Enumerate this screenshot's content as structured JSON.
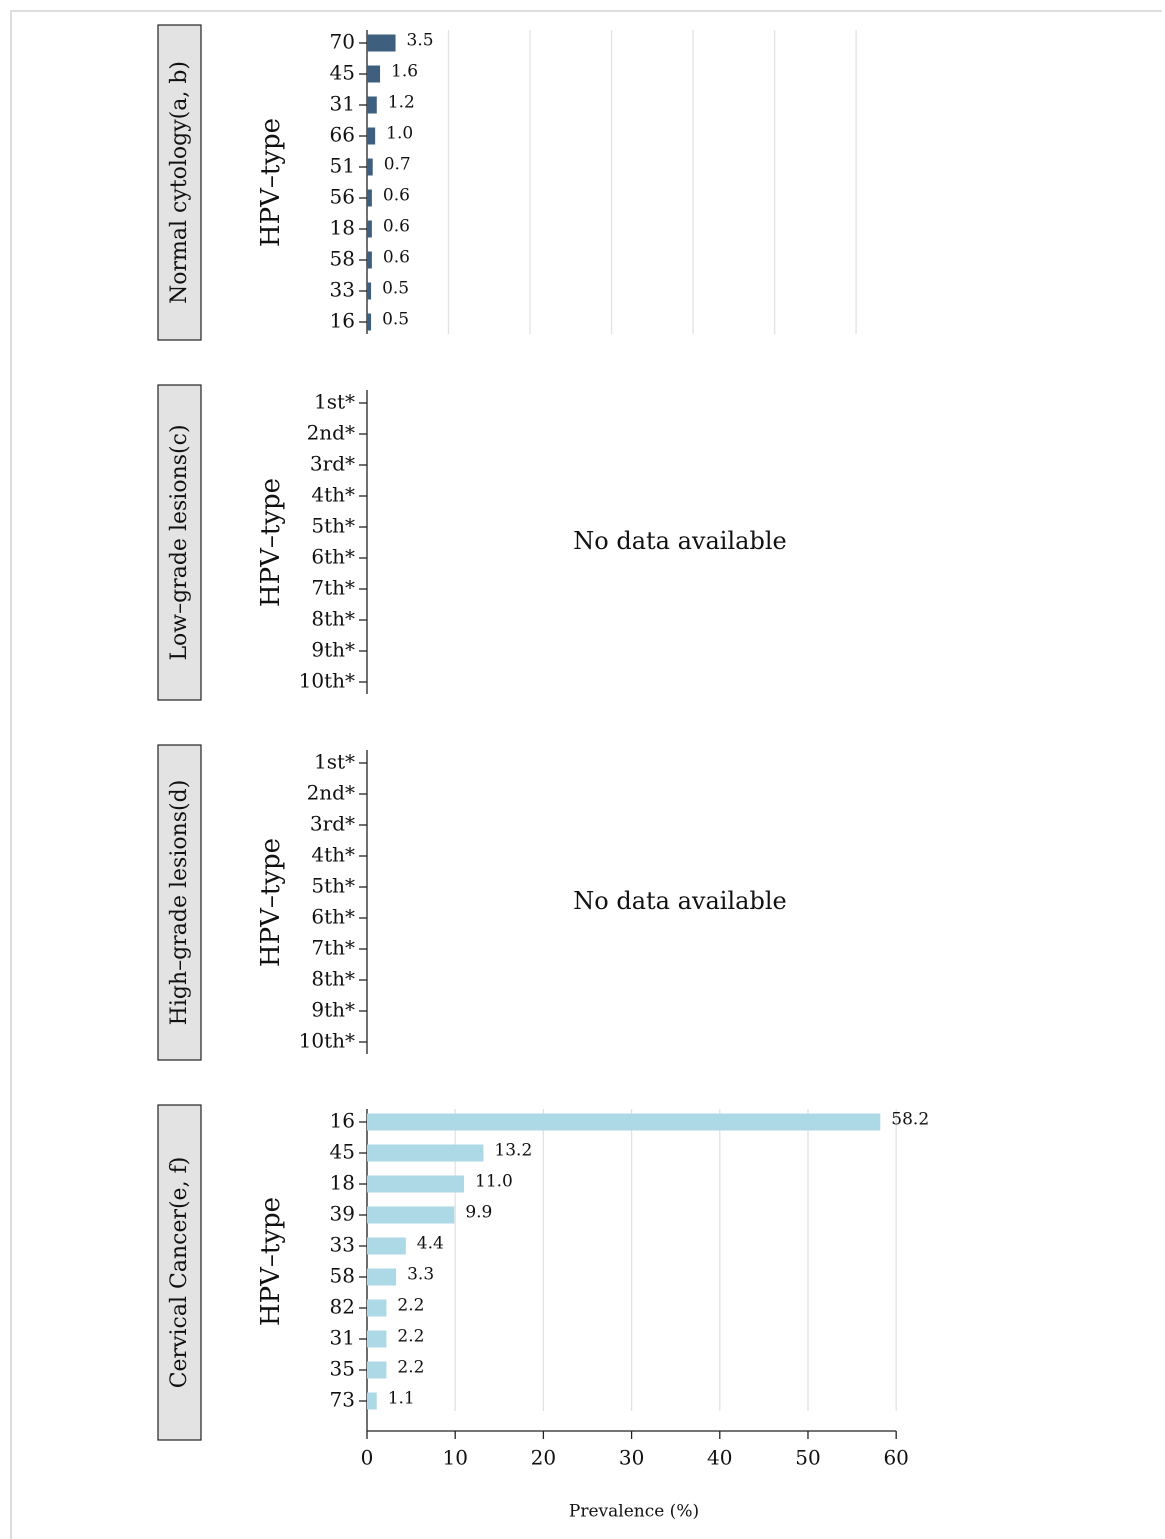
{
  "chart_data": [
    {
      "type": "bar",
      "title": "Normal cytology(a, b)",
      "y_label": "HPV–type",
      "categories": [
        "70",
        "45",
        "31",
        "66",
        "51",
        "56",
        "18",
        "58",
        "33",
        "16"
      ],
      "values": [
        3.5,
        1.6,
        1.2,
        1.0,
        0.7,
        0.6,
        0.6,
        0.6,
        0.5,
        0.5
      ],
      "value_labels": [
        "3.5",
        "1.6",
        "1.2",
        "1.0",
        "0.7",
        "0.6",
        "0.6",
        "0.6",
        "0.5",
        "0.5"
      ],
      "color": "#3e5f7e",
      "xlim": [
        0,
        66
      ],
      "xticks": [
        10,
        20,
        30,
        40,
        50,
        60
      ],
      "x_tick_labels": false,
      "grid": true
    },
    {
      "type": "bar",
      "title": "Low–grade lesions(c)",
      "y_label": "HPV–type",
      "categories": [
        "1st*",
        "2nd*",
        "3rd*",
        "4th*",
        "5th*",
        "6th*",
        "7th*",
        "8th*",
        "9th*",
        "10th*"
      ],
      "annotation": "No data available"
    },
    {
      "type": "bar",
      "title": "High–grade lesions(d)",
      "y_label": "HPV–type",
      "categories": [
        "1st*",
        "2nd*",
        "3rd*",
        "4th*",
        "5th*",
        "6th*",
        "7th*",
        "8th*",
        "9th*",
        "10th*"
      ],
      "annotation": "No data available"
    },
    {
      "type": "bar",
      "title": "Cervical Cancer(e, f)",
      "y_label": "HPV–type",
      "categories": [
        "16",
        "45",
        "18",
        "39",
        "33",
        "58",
        "82",
        "31",
        "35",
        "73"
      ],
      "values": [
        58.2,
        13.2,
        11.0,
        9.9,
        4.4,
        3.3,
        2.2,
        2.2,
        2.2,
        1.1
      ],
      "value_labels": [
        "58.2",
        "13.2",
        "11.0",
        "9.9",
        "4.4",
        "3.3",
        "2.2",
        "2.2",
        "2.2",
        "1.1"
      ],
      "color": "#add8e6",
      "xlim": [
        0,
        61
      ],
      "xticks": [
        0,
        10,
        20,
        30,
        40,
        50,
        60
      ],
      "x_tick_labels": true,
      "grid": true,
      "x_label": "Prevalence (%)"
    }
  ]
}
